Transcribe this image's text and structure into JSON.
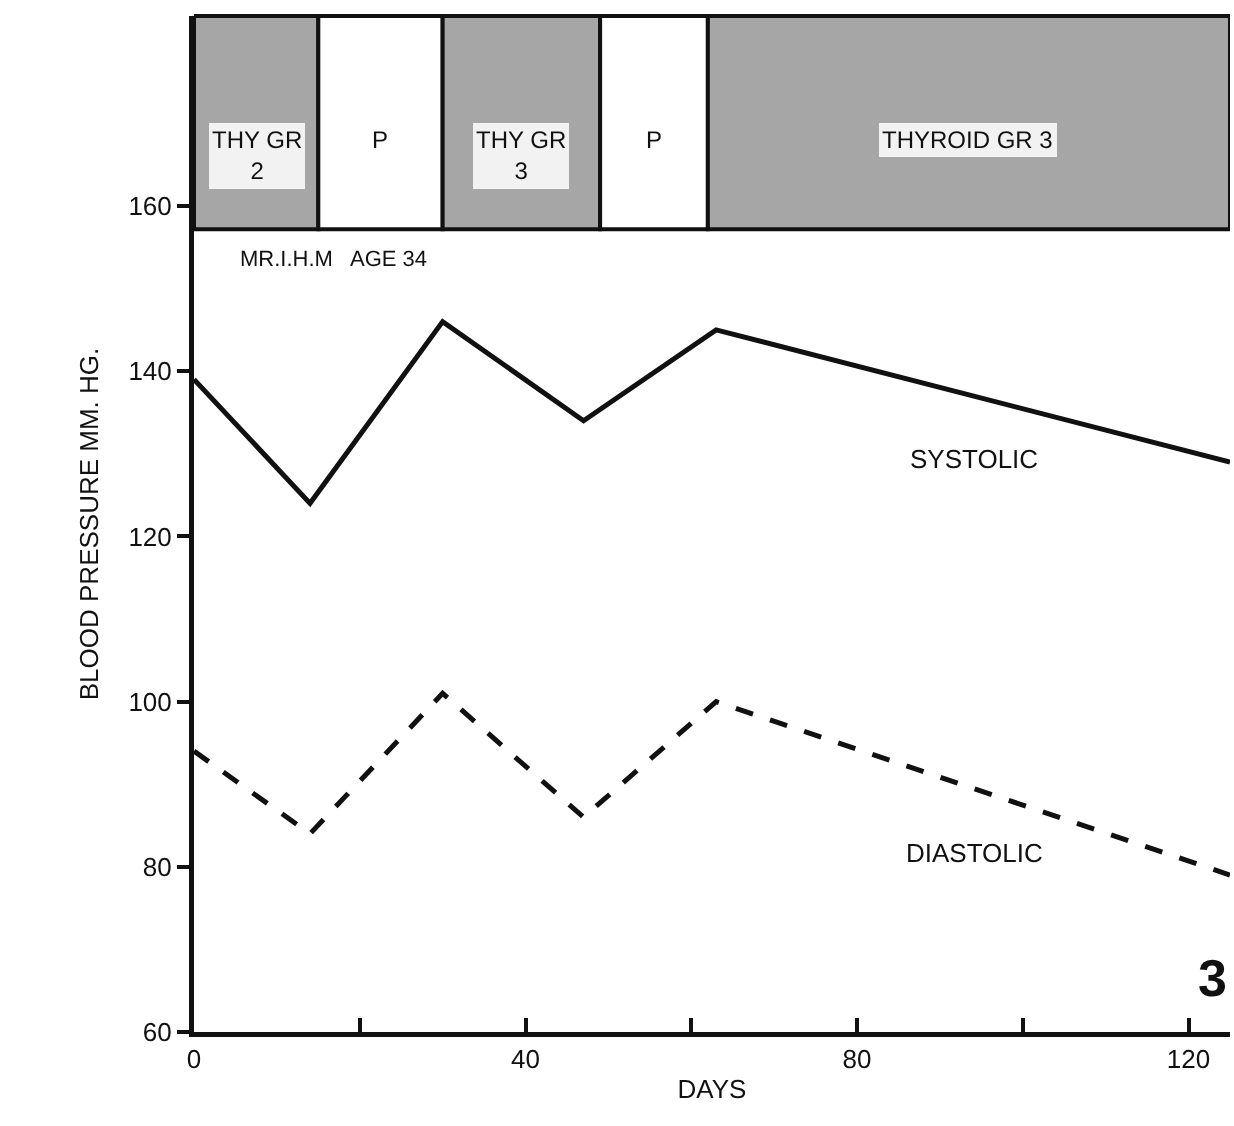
{
  "chart_data": {
    "type": "line",
    "xlabel": "DAYS",
    "ylabel": "BLOOD PRESSURE MM. HG.",
    "x": [
      0,
      14,
      30,
      47,
      63,
      125
    ],
    "series": [
      {
        "name": "SYSTOLIC",
        "color": "#111111",
        "values": [
          139,
          124,
          146,
          134,
          145,
          129
        ],
        "line_style": "solid"
      },
      {
        "name": "DIASTOLIC",
        "color": "#111111",
        "values": [
          94,
          84,
          101,
          86,
          100,
          79
        ],
        "line_style": "dashed"
      }
    ],
    "xlim": [
      0,
      125
    ],
    "xticks": [
      0,
      {
        "value": 20,
        "label": null
      },
      40,
      {
        "value": 60,
        "label": null
      },
      80,
      {
        "value": 100,
        "label": null
      },
      120
    ],
    "ylim": [
      60,
      183
    ],
    "yticks": [
      60,
      80,
      100,
      120,
      140,
      160
    ],
    "bands": [
      {
        "axis": "x",
        "from": 0,
        "to": 15,
        "label": "THY GR\n2",
        "color": "#a6a6a6"
      },
      {
        "axis": "x",
        "from": 15,
        "to": 30,
        "label": "P",
        "color": "#ffffff"
      },
      {
        "axis": "x",
        "from": 30,
        "to": 49,
        "label": "THY GR\n3",
        "color": "#a6a6a6"
      },
      {
        "axis": "x",
        "from": 49,
        "to": 62,
        "label": "P",
        "color": "#ffffff"
      },
      {
        "axis": "x",
        "from": 62,
        "to": 125,
        "label": "THYROID GR 3",
        "color": "#a6a6a6"
      }
    ],
    "annotations": [
      "MR.I.H.M   AGE 34",
      "3"
    ],
    "grid": false,
    "legend": false,
    "marker": "none"
  }
}
